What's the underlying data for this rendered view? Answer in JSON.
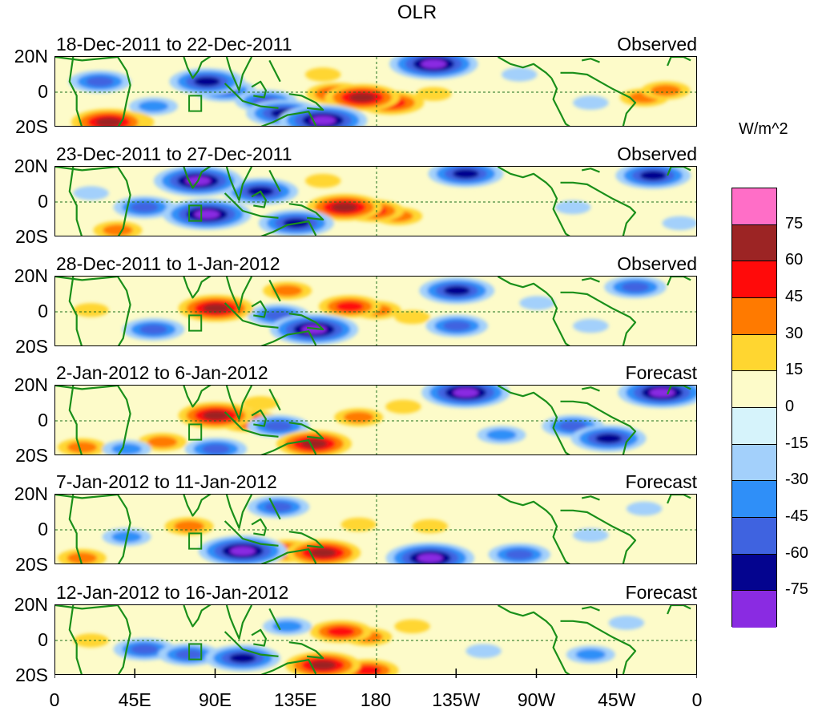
{
  "chart_data": {
    "type": "heatmap",
    "title": "OLR",
    "units_label": "W/m^2",
    "xlabel": "",
    "ylabel": "",
    "x_ticks": [
      "0",
      "45E",
      "90E",
      "135E",
      "180",
      "135W",
      "90W",
      "45W",
      "0"
    ],
    "y_ticks": [
      "20N",
      "0",
      "20S"
    ],
    "xlim_deg_east": [
      0,
      360
    ],
    "ylim_deg": [
      -20,
      20
    ],
    "panels": [
      {
        "period": "18-Dec-2011 to 22-Dec-2011",
        "kind": "Observed",
        "blobs": [
          {
            "lon": 172,
            "lat": -3,
            "value": 60
          },
          {
            "lon": 188,
            "lat": -6,
            "value": 50
          },
          {
            "lon": 158,
            "lat": -1,
            "value": 45
          },
          {
            "lon": 30,
            "lat": -17,
            "value": 60
          },
          {
            "lon": 38,
            "lat": -17,
            "value": 45
          },
          {
            "lon": 212,
            "lat": -1,
            "value": 15
          },
          {
            "lon": 150,
            "lat": 10,
            "value": 15
          },
          {
            "lon": 330,
            "lat": -3,
            "value": 30
          },
          {
            "lon": 342,
            "lat": 1,
            "value": 30
          },
          {
            "lon": 85,
            "lat": 6,
            "value": -60
          },
          {
            "lon": 95,
            "lat": 1,
            "value": -45
          },
          {
            "lon": 128,
            "lat": -12,
            "value": -60
          },
          {
            "lon": 150,
            "lat": -16,
            "value": -75
          },
          {
            "lon": 212,
            "lat": 16,
            "value": -75
          },
          {
            "lon": 25,
            "lat": 6,
            "value": -45
          },
          {
            "lon": 118,
            "lat": -5,
            "value": -45
          },
          {
            "lon": 55,
            "lat": -8,
            "value": -30
          },
          {
            "lon": 300,
            "lat": -6,
            "value": -15
          },
          {
            "lon": 260,
            "lat": 10,
            "value": -15
          }
        ]
      },
      {
        "period": "23-Dec-2011 to 27-Dec-2011",
        "kind": "Observed",
        "blobs": [
          {
            "lon": 162,
            "lat": -3,
            "value": 60
          },
          {
            "lon": 178,
            "lat": -5,
            "value": 45
          },
          {
            "lon": 192,
            "lat": -8,
            "value": 30
          },
          {
            "lon": 150,
            "lat": 12,
            "value": 15
          },
          {
            "lon": 35,
            "lat": -16,
            "value": 30
          },
          {
            "lon": 80,
            "lat": 12,
            "value": -75
          },
          {
            "lon": 85,
            "lat": -7,
            "value": -75
          },
          {
            "lon": 115,
            "lat": 6,
            "value": -60
          },
          {
            "lon": 135,
            "lat": -12,
            "value": -60
          },
          {
            "lon": 230,
            "lat": 16,
            "value": -60
          },
          {
            "lon": 335,
            "lat": 15,
            "value": -60
          },
          {
            "lon": 50,
            "lat": -3,
            "value": -45
          },
          {
            "lon": 290,
            "lat": -3,
            "value": -15
          },
          {
            "lon": 20,
            "lat": 5,
            "value": -15
          },
          {
            "lon": 350,
            "lat": -12,
            "value": -15
          }
        ]
      },
      {
        "period": "28-Dec-2011 to 1-Jan-2012",
        "kind": "Observed",
        "blobs": [
          {
            "lon": 90,
            "lat": 2,
            "value": 60
          },
          {
            "lon": 165,
            "lat": 3,
            "value": 45
          },
          {
            "lon": 180,
            "lat": 1,
            "value": 30
          },
          {
            "lon": 20,
            "lat": 1,
            "value": 15
          },
          {
            "lon": 130,
            "lat": 12,
            "value": 30
          },
          {
            "lon": 200,
            "lat": -3,
            "value": 15
          },
          {
            "lon": 145,
            "lat": -10,
            "value": -75
          },
          {
            "lon": 125,
            "lat": -2,
            "value": -45
          },
          {
            "lon": 225,
            "lat": 12,
            "value": -60
          },
          {
            "lon": 325,
            "lat": 14,
            "value": -45
          },
          {
            "lon": 55,
            "lat": -10,
            "value": -45
          },
          {
            "lon": 225,
            "lat": -8,
            "value": -45
          },
          {
            "lon": 300,
            "lat": -8,
            "value": -15
          },
          {
            "lon": 270,
            "lat": 5,
            "value": -15
          }
        ]
      },
      {
        "period": "2-Jan-2012 to 6-Jan-2012",
        "kind": "Forecast",
        "blobs": [
          {
            "lon": 90,
            "lat": 3,
            "value": 60
          },
          {
            "lon": 108,
            "lat": 0,
            "value": 45
          },
          {
            "lon": 145,
            "lat": -13,
            "value": 60
          },
          {
            "lon": 170,
            "lat": 2,
            "value": 30
          },
          {
            "lon": 195,
            "lat": 8,
            "value": 15
          },
          {
            "lon": 60,
            "lat": -12,
            "value": 30
          },
          {
            "lon": 15,
            "lat": -15,
            "value": 30
          },
          {
            "lon": 115,
            "lat": 10,
            "value": 15
          },
          {
            "lon": 230,
            "lat": 16,
            "value": -75
          },
          {
            "lon": 340,
            "lat": 16,
            "value": -75
          },
          {
            "lon": 310,
            "lat": -10,
            "value": -60
          },
          {
            "lon": 290,
            "lat": -3,
            "value": -45
          },
          {
            "lon": 125,
            "lat": -3,
            "value": -45
          },
          {
            "lon": 90,
            "lat": -16,
            "value": -45
          },
          {
            "lon": 40,
            "lat": -16,
            "value": -30
          },
          {
            "lon": 250,
            "lat": -8,
            "value": -30
          }
        ]
      },
      {
        "period": "7-Jan-2012 to 11-Jan-2012",
        "kind": "Forecast",
        "blobs": [
          {
            "lon": 150,
            "lat": -13,
            "value": 60
          },
          {
            "lon": 130,
            "lat": -12,
            "value": 45
          },
          {
            "lon": 75,
            "lat": 2,
            "value": 30
          },
          {
            "lon": 170,
            "lat": 3,
            "value": 15
          },
          {
            "lon": 210,
            "lat": 2,
            "value": 15
          },
          {
            "lon": 15,
            "lat": -16,
            "value": 30
          },
          {
            "lon": 105,
            "lat": -12,
            "value": -75
          },
          {
            "lon": 210,
            "lat": -16,
            "value": -75
          },
          {
            "lon": 125,
            "lat": 13,
            "value": -45
          },
          {
            "lon": 260,
            "lat": -14,
            "value": -45
          },
          {
            "lon": 300,
            "lat": -3,
            "value": -15
          },
          {
            "lon": 40,
            "lat": -4,
            "value": -30
          },
          {
            "lon": 330,
            "lat": 12,
            "value": -15
          }
        ]
      },
      {
        "period": "12-Jan-2012 to 16-Jan-2012",
        "kind": "Forecast",
        "blobs": [
          {
            "lon": 150,
            "lat": -14,
            "value": 60
          },
          {
            "lon": 175,
            "lat": -17,
            "value": 45
          },
          {
            "lon": 160,
            "lat": 5,
            "value": 45
          },
          {
            "lon": 175,
            "lat": 2,
            "value": 30
          },
          {
            "lon": 200,
            "lat": 8,
            "value": 15
          },
          {
            "lon": 20,
            "lat": 0,
            "value": 15
          },
          {
            "lon": 50,
            "lat": -5,
            "value": -45
          },
          {
            "lon": 105,
            "lat": -10,
            "value": -60
          },
          {
            "lon": 75,
            "lat": -8,
            "value": -45
          },
          {
            "lon": 130,
            "lat": 8,
            "value": -30
          },
          {
            "lon": 300,
            "lat": -8,
            "value": -30
          },
          {
            "lon": 240,
            "lat": -6,
            "value": -15
          },
          {
            "lon": 320,
            "lat": 10,
            "value": -15
          }
        ]
      }
    ],
    "colorbar": {
      "levels": [
        75,
        60,
        45,
        30,
        15,
        0,
        -15,
        -30,
        -45,
        -60,
        -75
      ],
      "colors": [
        "#ff6ec7",
        "#9c2424",
        "#ff0a0a",
        "#ff7a00",
        "#ffd630",
        "#fdfbc9",
        "#d6f3fb",
        "#a3d0fb",
        "#2f8ff8",
        "#3f63e0",
        "#04048f",
        "#8a2be2"
      ]
    },
    "land_color": "#1a8f1a",
    "reference_lines": {
      "equator": true,
      "dateline": true
    },
    "marker_box": {
      "lon_range": [
        75,
        80
      ],
      "lat_range": [
        -8,
        -2
      ]
    }
  }
}
